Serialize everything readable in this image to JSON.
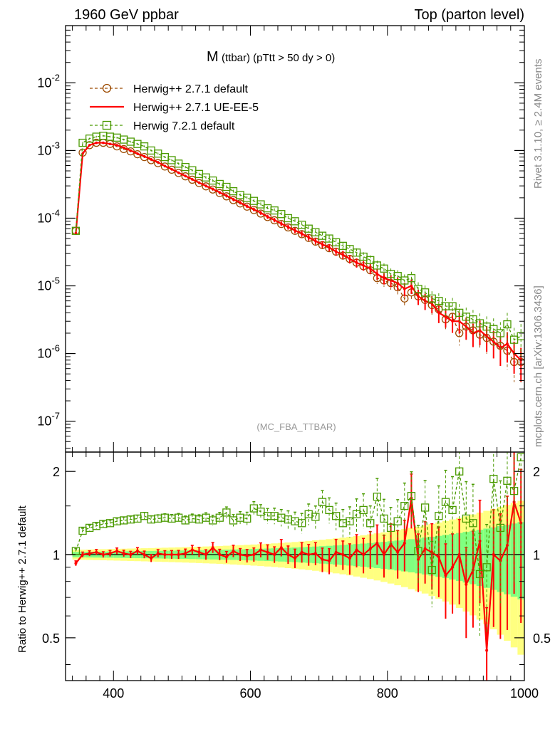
{
  "header": {
    "left": "1960 GeV ppbar",
    "right": "Top (parton level)"
  },
  "title": {
    "main": "M",
    "sub": "(ttbar) (pTtt > 50 dy > 0)"
  },
  "side_labels": {
    "rivet": "Rivet 3.1.10, ≥ 2.4M events",
    "mcplots": "mcplots.cern.ch [arXiv:1306.3436]"
  },
  "analysis_tag": "(MC_FBA_TTBAR)",
  "ratio_ylabel": "Ratio to Herwig++ 2.7.1 default",
  "colors": {
    "herwigpp_default": "#9c4a00",
    "herwigpp_ueee5": "#ff0000",
    "herwig7": "#4a9a00",
    "band_yellow": "#ffff80",
    "band_green": "#80ff80"
  },
  "chart_data": [
    {
      "type": "line",
      "yscale": "log",
      "xlim": [
        330,
        1000
      ],
      "ylim": [
        3.5e-08,
        0.07
      ],
      "ytick_labels": [
        "10^-7",
        "10^-6",
        "10^-5",
        "10^-4",
        "10^-3",
        "10^-2"
      ],
      "ytick_values": [
        1e-07,
        1e-06,
        1e-05,
        0.0001,
        0.001,
        0.01
      ],
      "legend_position": "top-left",
      "x": [
        345,
        355,
        365,
        375,
        385,
        395,
        405,
        415,
        425,
        435,
        445,
        455,
        465,
        475,
        485,
        495,
        505,
        515,
        525,
        535,
        545,
        555,
        565,
        575,
        585,
        595,
        605,
        615,
        625,
        635,
        645,
        655,
        665,
        675,
        685,
        695,
        705,
        715,
        725,
        735,
        745,
        755,
        765,
        775,
        785,
        795,
        805,
        815,
        825,
        835,
        845,
        855,
        865,
        875,
        885,
        895,
        905,
        915,
        925,
        935,
        945,
        955,
        965,
        975,
        985,
        995
      ],
      "series": [
        {
          "name": "Herwig++ 2.7.1 default",
          "style": "dashed-circle",
          "values": [
            6.5e-05,
            0.00093,
            0.0012,
            0.0013,
            0.0013,
            0.00125,
            0.00115,
            0.00105,
            0.00097,
            0.00088,
            0.0008,
            0.00072,
            0.00065,
            0.00058,
            0.00052,
            0.000465,
            0.000415,
            0.00037,
            0.00033,
            0.000295,
            0.000265,
            0.000235,
            0.00021,
            0.000185,
            0.000165,
            0.000148,
            0.000132,
            0.000117,
            0.000104,
            9.3e-05,
            8.2e-05,
            7.3e-05,
            6.5e-05,
            5.8e-05,
            5.1e-05,
            4.5e-05,
            4e-05,
            3.6e-05,
            3.2e-05,
            2.8e-05,
            2.5e-05,
            2.2e-05,
            1.95e-05,
            1.7e-05,
            1.3e-05,
            1.2e-05,
            1.1e-05,
            9.5e-06,
            6.5e-06,
            8e-06,
            7e-06,
            6.2e-06,
            5.2e-06,
            4.5e-06,
            3.2e-06,
            3.5e-06,
            2e-06,
            2.5e-06,
            2.2e-06,
            1.9e-06,
            1.7e-06,
            1.5e-06,
            1.3e-06,
            1.1e-06,
            7.5e-07,
            7.5e-07
          ]
        },
        {
          "name": "Herwig++ 2.7.1 UE-EE-5",
          "style": "solid",
          "values": [
            6e-05,
            0.0009,
            0.0012,
            0.0013,
            0.0013,
            0.00125,
            0.0012,
            0.0011,
            0.001,
            0.0009,
            0.00082,
            0.00074,
            0.00067,
            0.00059,
            0.00053,
            0.00047,
            0.00042,
            0.000375,
            0.000335,
            0.0003,
            0.00027,
            0.00024,
            0.000215,
            0.00019,
            0.00017,
            0.00015,
            0.000135,
            0.00012,
            0.000105,
            9.4e-05,
            8.3e-05,
            7.4e-05,
            6.6e-05,
            5.9e-05,
            5.2e-05,
            4.6e-05,
            4.1e-05,
            3.7e-05,
            3.2e-05,
            2.9e-05,
            2.5e-05,
            2.2e-05,
            2e-05,
            1.8e-05,
            1.5e-05,
            1.3e-05,
            1.2e-05,
            1.1e-05,
            9e-06,
            1e-05,
            7e-06,
            6e-06,
            5.5e-06,
            4e-06,
            3.5e-06,
            3e-06,
            3e-06,
            2.5e-06,
            2e-06,
            2.2e-06,
            1.8e-06,
            1.5e-06,
            1.2e-06,
            1.4e-06,
            1e-06,
            8e-07
          ]
        },
        {
          "name": "Herwig 7.2.1 default",
          "style": "dashed-square",
          "values": [
            6.5e-05,
            0.0013,
            0.0015,
            0.0016,
            0.00165,
            0.0016,
            0.00155,
            0.00145,
            0.00135,
            0.00125,
            0.00115,
            0.001,
            0.0009,
            0.0008,
            0.00072,
            0.00064,
            0.00057,
            0.00051,
            0.00045,
            0.0004,
            0.00036,
            0.00032,
            0.00029,
            0.00025,
            0.00022,
            0.0002,
            0.00018,
            0.00016,
            0.00014,
            0.00013,
            0.000115,
            0.0001,
            9e-05,
            8e-05,
            7e-05,
            6.2e-05,
            5.5e-05,
            5e-05,
            4.4e-05,
            3.9e-05,
            3.5e-05,
            3.1e-05,
            2.7e-05,
            2.4e-05,
            2e-05,
            1.8e-05,
            1.5e-05,
            1.4e-05,
            1.2e-05,
            1.3e-05,
            9e-06,
            8e-06,
            6.5e-06,
            6e-06,
            5e-06,
            5e-06,
            4e-06,
            3.5e-06,
            3.2e-06,
            2.8e-06,
            2.5e-06,
            2.3e-06,
            2e-06,
            2.7e-06,
            1.6e-06,
            1.8e-06
          ]
        }
      ]
    },
    {
      "type": "line",
      "xlabel": "",
      "ylabel": "Ratio to Herwig++ 2.7.1 default",
      "xlim": [
        330,
        1000
      ],
      "ylim": [
        0.35,
        2.35
      ],
      "xticks": [
        400,
        600,
        800,
        1000
      ],
      "yticks": [
        0.5,
        1,
        2
      ],
      "x": [
        345,
        355,
        365,
        375,
        385,
        395,
        405,
        415,
        425,
        435,
        445,
        455,
        465,
        475,
        485,
        495,
        505,
        515,
        525,
        535,
        545,
        555,
        565,
        575,
        585,
        595,
        605,
        615,
        625,
        635,
        645,
        655,
        665,
        675,
        685,
        695,
        705,
        715,
        725,
        735,
        745,
        755,
        765,
        775,
        785,
        795,
        805,
        815,
        825,
        835,
        845,
        855,
        865,
        875,
        885,
        895,
        905,
        915,
        925,
        935,
        945,
        955,
        965,
        975,
        985,
        995
      ],
      "series": [
        {
          "name": "Herwig++ 2.7.1 UE-EE-5",
          "values": [
            0.93,
            1.0,
            1.01,
            1.02,
            1.0,
            1.01,
            1.03,
            1.01,
            1.0,
            1.03,
            1.0,
            0.97,
            1.01,
            1.0,
            1.0,
            1.0,
            1.01,
            1.04,
            1.02,
            1.0,
            1.06,
            1.0,
            0.98,
            1.03,
            1.0,
            0.99,
            1.0,
            1.04,
            1.02,
            1.0,
            1.06,
            1.0,
            0.97,
            1.02,
            1.0,
            1.01,
            0.96,
            0.95,
            1.02,
            1.0,
            0.97,
            1.04,
            1.0,
            1.05,
            1.1,
            1.0,
            1.09,
            1.02,
            1.1,
            1.6,
            0.96,
            1.05,
            1.02,
            0.98,
            0.84,
            0.9,
            1.0,
            0.78,
            0.88,
            1.12,
            0.45,
            1.0,
            0.95,
            1.08,
            1.55,
            1.3
          ]
        },
        {
          "name": "Herwig 7.2.1 default",
          "values": [
            1.03,
            1.22,
            1.25,
            1.27,
            1.29,
            1.3,
            1.32,
            1.33,
            1.34,
            1.35,
            1.38,
            1.34,
            1.35,
            1.36,
            1.35,
            1.36,
            1.33,
            1.35,
            1.34,
            1.36,
            1.33,
            1.36,
            1.42,
            1.33,
            1.36,
            1.35,
            1.47,
            1.43,
            1.38,
            1.38,
            1.36,
            1.34,
            1.32,
            1.3,
            1.4,
            1.37,
            1.55,
            1.45,
            1.38,
            1.3,
            1.32,
            1.4,
            1.45,
            1.3,
            1.62,
            1.35,
            1.25,
            1.32,
            1.5,
            1.63,
            1.03,
            1.48,
            0.88,
            1.38,
            1.55,
            1.45,
            2.0,
            1.35,
            1.3,
            0.85,
            0.9,
            1.88,
            1.25,
            1.85,
            1.7,
            2.25
          ]
        }
      ]
    }
  ]
}
